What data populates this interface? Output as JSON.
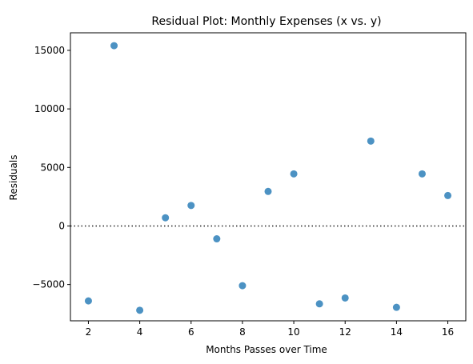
{
  "chart_data": {
    "type": "scatter",
    "title": "Residual Plot: Monthly Expenses (x vs. y)",
    "xlabel": "Months Passes over Time",
    "ylabel": "Residuals",
    "xlim": [
      1.3,
      16.7
    ],
    "ylim": [
      -8100,
      16500
    ],
    "x_ticks": [
      2,
      4,
      6,
      8,
      10,
      12,
      14,
      16
    ],
    "y_ticks": [
      -5000,
      0,
      5000,
      10000,
      15000
    ],
    "grid": false,
    "reference_line": {
      "y": 0,
      "style": "dotted"
    },
    "point_color": "#1f77b4",
    "points": [
      {
        "x": 2,
        "y": -6400
      },
      {
        "x": 3,
        "y": 15400
      },
      {
        "x": 4,
        "y": -7200
      },
      {
        "x": 5,
        "y": 700
      },
      {
        "x": 6,
        "y": 1750
      },
      {
        "x": 7,
        "y": -1100
      },
      {
        "x": 8,
        "y": -5100
      },
      {
        "x": 9,
        "y": 2950
      },
      {
        "x": 10,
        "y": 4450
      },
      {
        "x": 11,
        "y": -6650
      },
      {
        "x": 12,
        "y": -6150
      },
      {
        "x": 13,
        "y": 7250
      },
      {
        "x": 14,
        "y": -6950
      },
      {
        "x": 15,
        "y": 4450
      },
      {
        "x": 16,
        "y": 2600
      }
    ]
  }
}
